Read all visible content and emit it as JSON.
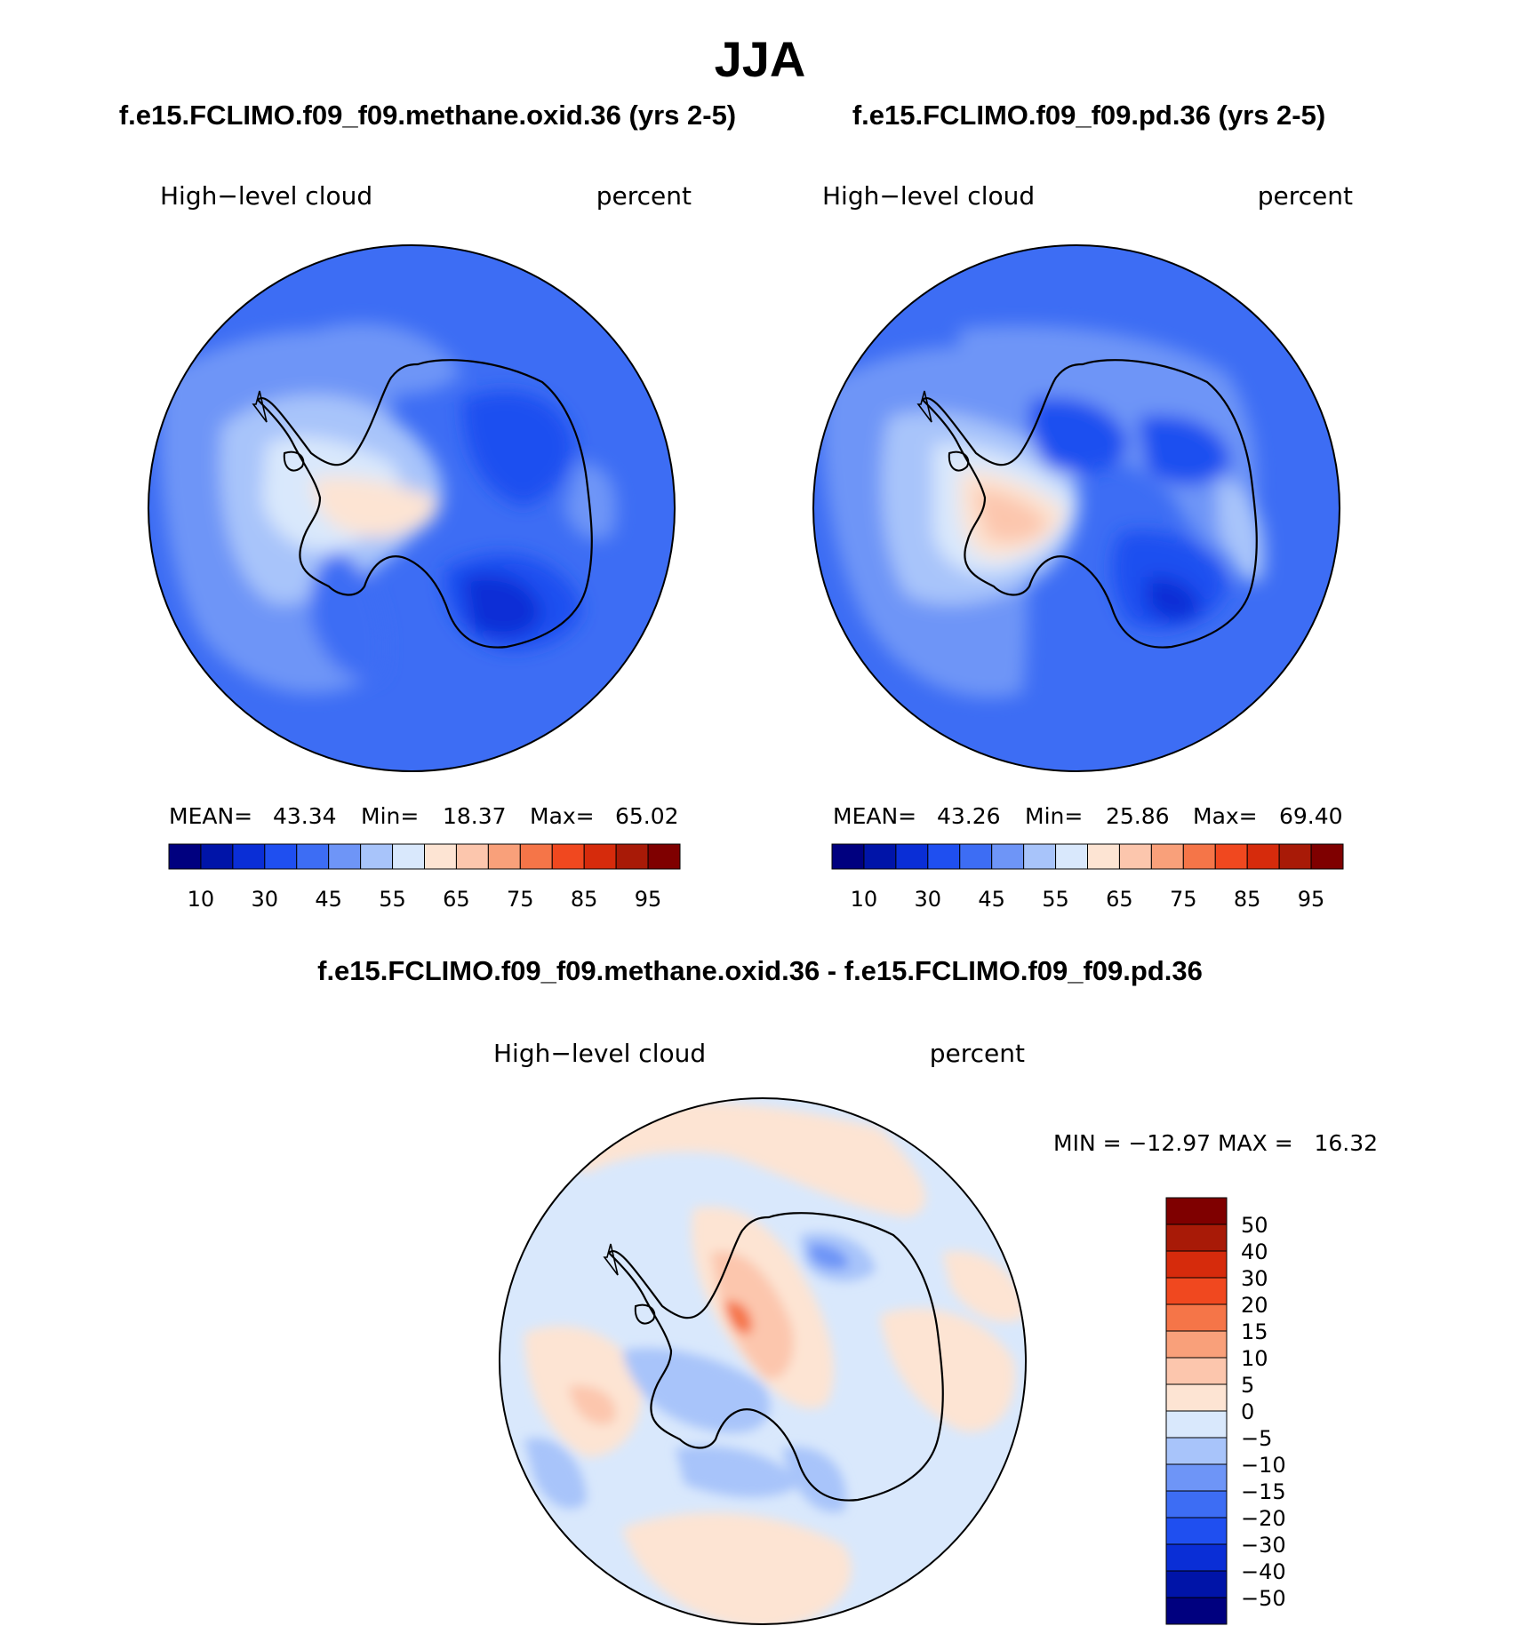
{
  "figure": {
    "season": "JJA",
    "colors": {
      "abs_palette": [
        "#00007f",
        "#0014a8",
        "#0a2ed6",
        "#1f4ff0",
        "#3d6df4",
        "#6e95f7",
        "#a8c4fa",
        "#d9e8fc",
        "#fde4d3",
        "#fcc6ad",
        "#f9a07a",
        "#f57548",
        "#f0481f",
        "#d62b0c",
        "#a81a07",
        "#7f0000"
      ],
      "diff_palette": [
        "#00007f",
        "#0014a8",
        "#0a2ed6",
        "#1f4ff0",
        "#3d6df4",
        "#6e95f7",
        "#a8c4fa",
        "#d9e8fc",
        "#fde4d3",
        "#fcc6ad",
        "#f9a07a",
        "#f57548",
        "#f0481f",
        "#d62b0c",
        "#a81a07",
        "#7f0000"
      ],
      "coastline": "#000000"
    }
  },
  "chart_data": [
    {
      "type": "heatmap",
      "title": "f.e15.FCLIMO.f09_f09.methane.oxid.36 (yrs 2-5)",
      "variable_label": "High−level cloud",
      "units_label": "percent",
      "stats": {
        "mean_label": "MEAN=",
        "mean": "43.34",
        "min_label": "Min=",
        "min": "18.37",
        "max_label": "Max=",
        "max": "65.02"
      },
      "colorbar": {
        "orientation": "horizontal",
        "levels": [
          10,
          20,
          30,
          40,
          45,
          50,
          55,
          60,
          65,
          70,
          75,
          80,
          85,
          90,
          95
        ],
        "tick_labels": [
          "10",
          "30",
          "45",
          "55",
          "65",
          "75",
          "85",
          "95"
        ]
      }
    },
    {
      "type": "heatmap",
      "title": "f.e15.FCLIMO.f09_f09.pd.36 (yrs 2-5)",
      "variable_label": "High−level cloud",
      "units_label": "percent",
      "stats": {
        "mean_label": "MEAN=",
        "mean": "43.26",
        "min_label": "Min=",
        "min": "25.86",
        "max_label": "Max=",
        "max": "69.40"
      },
      "colorbar": {
        "orientation": "horizontal",
        "levels": [
          10,
          20,
          30,
          40,
          45,
          50,
          55,
          60,
          65,
          70,
          75,
          80,
          85,
          90,
          95
        ],
        "tick_labels": [
          "10",
          "30",
          "45",
          "55",
          "65",
          "75",
          "85",
          "95"
        ]
      }
    },
    {
      "type": "heatmap",
      "title": "f.e15.FCLIMO.f09_f09.methane.oxid.36 - f.e15.FCLIMO.f09_f09.pd.36",
      "variable_label": "High−level cloud",
      "units_label": "percent",
      "stats_text": "MIN = −12.97 MAX =   16.32",
      "colorbar": {
        "orientation": "vertical",
        "levels": [
          50,
          40,
          30,
          20,
          15,
          10,
          5,
          0,
          -5,
          -10,
          -15,
          -20,
          -30,
          -40,
          -50
        ],
        "tick_labels": [
          "50",
          "40",
          "30",
          "20",
          "15",
          "10",
          "5",
          "0",
          "−5",
          "−10",
          "−15",
          "−20",
          "−30",
          "−40",
          "−50"
        ]
      }
    }
  ]
}
